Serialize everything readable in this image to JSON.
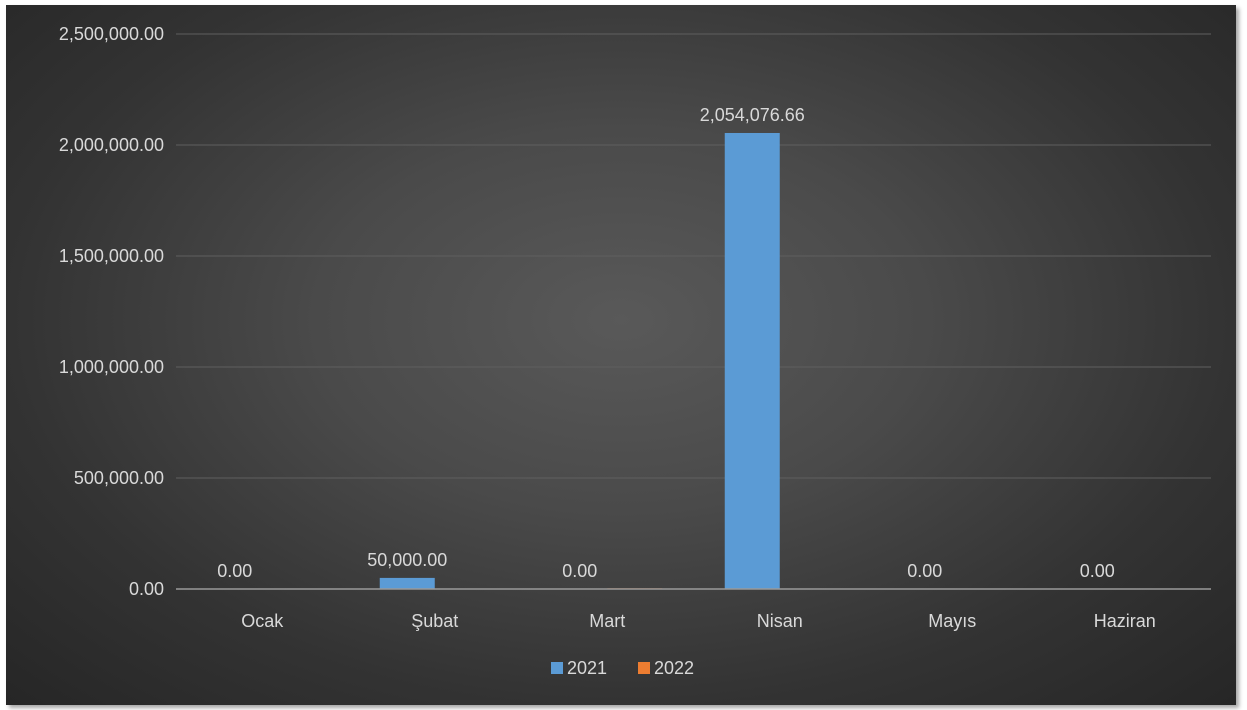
{
  "colors": {
    "series_2021": "#5b9bd5",
    "series_2022": "#ed7d31",
    "gridline": "#5f5f5f",
    "axis": "#9a9a9a",
    "text": "#d9d9d9"
  },
  "chart_data": {
    "type": "bar",
    "title": "",
    "xlabel": "",
    "ylabel": "",
    "categories": [
      "Ocak",
      "Şubat",
      "Mart",
      "Nisan",
      "Mayıs",
      "Haziran"
    ],
    "series": [
      {
        "name": "2021",
        "values": [
          0,
          50000,
          0,
          2054076.66,
          0,
          0
        ],
        "data_labels": [
          "0.00",
          "50,000.00",
          "0.00",
          "2,054,076.66",
          "0.00",
          "0.00"
        ]
      },
      {
        "name": "2022",
        "values": [
          0,
          0,
          3000,
          0,
          0,
          0
        ]
      }
    ],
    "ylim": [
      0,
      2500000
    ],
    "yticks": [
      0,
      500000,
      1000000,
      1500000,
      2000000,
      2500000
    ],
    "ytick_labels": [
      "0.00",
      "500,000.00",
      "1,000,000.00",
      "1,500,000.00",
      "2,000,000.00",
      "2,500,000.00"
    ],
    "grid": true,
    "legend_position": "bottom"
  }
}
